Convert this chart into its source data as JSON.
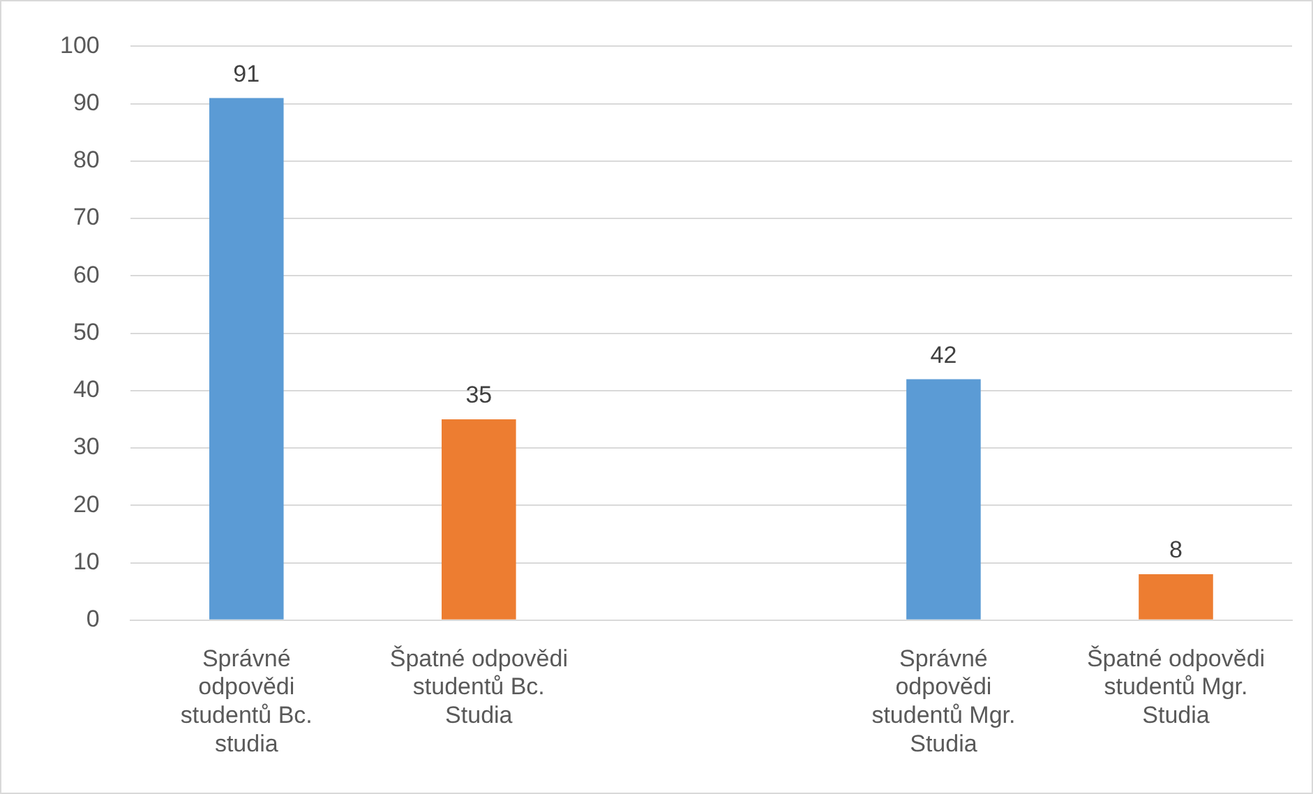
{
  "chart_data": {
    "type": "bar",
    "categories": [
      "Správné odpovědi studentů Bc. studia",
      "Špatné odpovědi studentů Bc. Studia",
      null,
      "Správné odpovědi studentů Mgr. Studia",
      "Špatné odpovědi studentů Mgr. Studia"
    ],
    "values": [
      91,
      35,
      null,
      42,
      8
    ],
    "colors": [
      "#5b9bd5",
      "#ed7d31",
      null,
      "#5b9bd5",
      "#ed7d31"
    ],
    "ylim": [
      0,
      100
    ],
    "yticks": [
      0,
      10,
      20,
      30,
      40,
      50,
      60,
      70,
      80,
      90,
      100
    ],
    "grid": "y",
    "data_labels": true,
    "legend": false
  }
}
